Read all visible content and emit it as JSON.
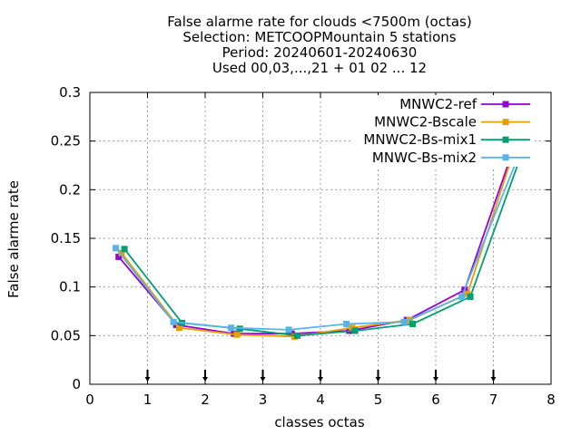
{
  "chart_data": {
    "type": "line",
    "title_lines": [
      "False alarme rate  for clouds <7500m (octas)",
      "Selection: METCOOPMountain      5 stations",
      "Period: 20240601-20240630",
      "Used 00,03,...,21 + 01 02 ... 12"
    ],
    "xlabel": "classes octas",
    "ylabel": "False alarme rate",
    "xlim": [
      0,
      8
    ],
    "ylim": [
      0,
      0.3
    ],
    "x_ticks": [
      0,
      1,
      2,
      3,
      4,
      5,
      6,
      7,
      8
    ],
    "x_tick_labels": [
      "0",
      "1",
      "2",
      "3",
      "4",
      "5",
      "6",
      "7",
      "8"
    ],
    "y_ticks": [
      0,
      0.05,
      0.1,
      0.15,
      0.2,
      0.25,
      0.3
    ],
    "y_tick_labels": [
      "0",
      "0.05",
      "0.1",
      "0.15",
      "0.2",
      "0.25",
      "0.3"
    ],
    "grid": true,
    "legend_position": "top-right",
    "arrow_markers_x": [
      1,
      2,
      3,
      4,
      5,
      6,
      7
    ],
    "series": [
      {
        "name": "MNWC2-ref",
        "color": "#9400d3",
        "x": [
          0.5,
          1.5,
          2.5,
          3.5,
          4.5,
          5.5,
          6.5,
          7.5
        ],
        "y": [
          0.131,
          0.061,
          0.052,
          0.052,
          0.055,
          0.066,
          0.097,
          0.268
        ]
      },
      {
        "name": "MNWC2-Bscale",
        "color": "#e69f00",
        "x": [
          0.55,
          1.55,
          2.55,
          3.55,
          4.55,
          5.55,
          6.55,
          7.55
        ],
        "y": [
          0.135,
          0.058,
          0.051,
          0.049,
          0.058,
          0.066,
          0.093,
          0.275
        ]
      },
      {
        "name": "MNWC2-Bs-mix1",
        "color": "#009e73",
        "x": [
          0.6,
          1.6,
          2.6,
          3.6,
          4.6,
          5.6,
          6.6,
          7.6
        ],
        "y": [
          0.139,
          0.063,
          0.057,
          0.05,
          0.055,
          0.062,
          0.09,
          0.255
        ]
      },
      {
        "name": "MNWC-Bs-mix2",
        "color": "#56b4e9",
        "x": [
          0.45,
          1.45,
          2.45,
          3.45,
          4.45,
          5.45,
          6.45,
          7.45
        ],
        "y": [
          0.14,
          0.064,
          0.058,
          0.056,
          0.062,
          0.064,
          0.09,
          0.237
        ]
      }
    ]
  }
}
